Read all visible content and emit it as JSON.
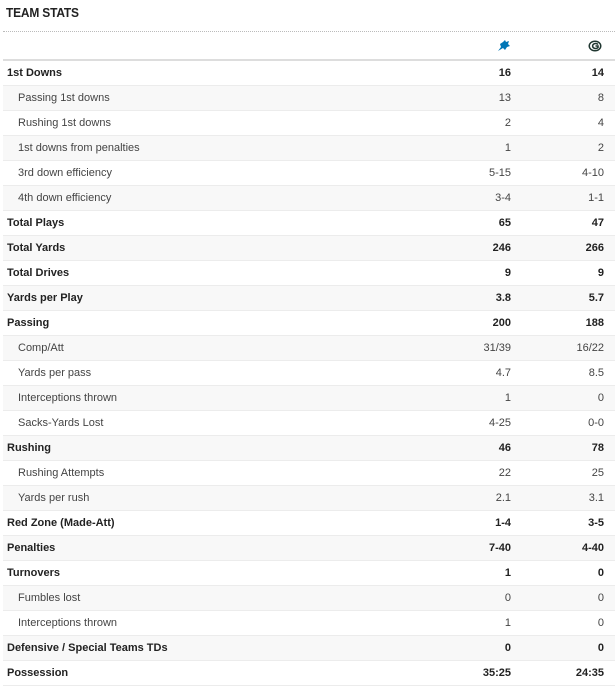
{
  "title": "TEAM STATS",
  "teams": [
    {
      "name": "Lions",
      "icon": "lions-logo-icon",
      "color": "#0076b6"
    },
    {
      "name": "Packers",
      "icon": "packers-logo-icon",
      "color": "#203731"
    }
  ],
  "rows": [
    {
      "label": "1st Downs",
      "type": "main",
      "v1": "16",
      "v2": "14"
    },
    {
      "label": "Passing 1st downs",
      "type": "sub",
      "v1": "13",
      "v2": "8"
    },
    {
      "label": "Rushing 1st downs",
      "type": "sub",
      "v1": "2",
      "v2": "4"
    },
    {
      "label": "1st downs from penalties",
      "type": "sub",
      "v1": "1",
      "v2": "2"
    },
    {
      "label": "3rd down efficiency",
      "type": "sub",
      "v1": "5-15",
      "v2": "4-10"
    },
    {
      "label": "4th down efficiency",
      "type": "sub",
      "v1": "3-4",
      "v2": "1-1"
    },
    {
      "label": "Total Plays",
      "type": "main",
      "v1": "65",
      "v2": "47"
    },
    {
      "label": "Total Yards",
      "type": "main",
      "v1": "246",
      "v2": "266"
    },
    {
      "label": "Total Drives",
      "type": "main",
      "v1": "9",
      "v2": "9"
    },
    {
      "label": "Yards per Play",
      "type": "main",
      "v1": "3.8",
      "v2": "5.7"
    },
    {
      "label": "Passing",
      "type": "main",
      "v1": "200",
      "v2": "188"
    },
    {
      "label": "Comp/Att",
      "type": "sub",
      "v1": "31/39",
      "v2": "16/22"
    },
    {
      "label": "Yards per pass",
      "type": "sub",
      "v1": "4.7",
      "v2": "8.5"
    },
    {
      "label": "Interceptions thrown",
      "type": "sub",
      "v1": "1",
      "v2": "0"
    },
    {
      "label": "Sacks-Yards Lost",
      "type": "sub",
      "v1": "4-25",
      "v2": "0-0"
    },
    {
      "label": "Rushing",
      "type": "main",
      "v1": "46",
      "v2": "78"
    },
    {
      "label": "Rushing Attempts",
      "type": "sub",
      "v1": "22",
      "v2": "25"
    },
    {
      "label": "Yards per rush",
      "type": "sub",
      "v1": "2.1",
      "v2": "3.1"
    },
    {
      "label": "Red Zone (Made-Att)",
      "type": "main",
      "v1": "1-4",
      "v2": "3-5"
    },
    {
      "label": "Penalties",
      "type": "main",
      "v1": "7-40",
      "v2": "4-40"
    },
    {
      "label": "Turnovers",
      "type": "main",
      "v1": "1",
      "v2": "0"
    },
    {
      "label": "Fumbles lost",
      "type": "sub",
      "v1": "0",
      "v2": "0"
    },
    {
      "label": "Interceptions thrown",
      "type": "sub",
      "v1": "1",
      "v2": "0"
    },
    {
      "label": "Defensive / Special Teams TDs",
      "type": "main",
      "v1": "0",
      "v2": "0"
    },
    {
      "label": "Possession",
      "type": "main",
      "v1": "35:25",
      "v2": "24:35"
    }
  ]
}
